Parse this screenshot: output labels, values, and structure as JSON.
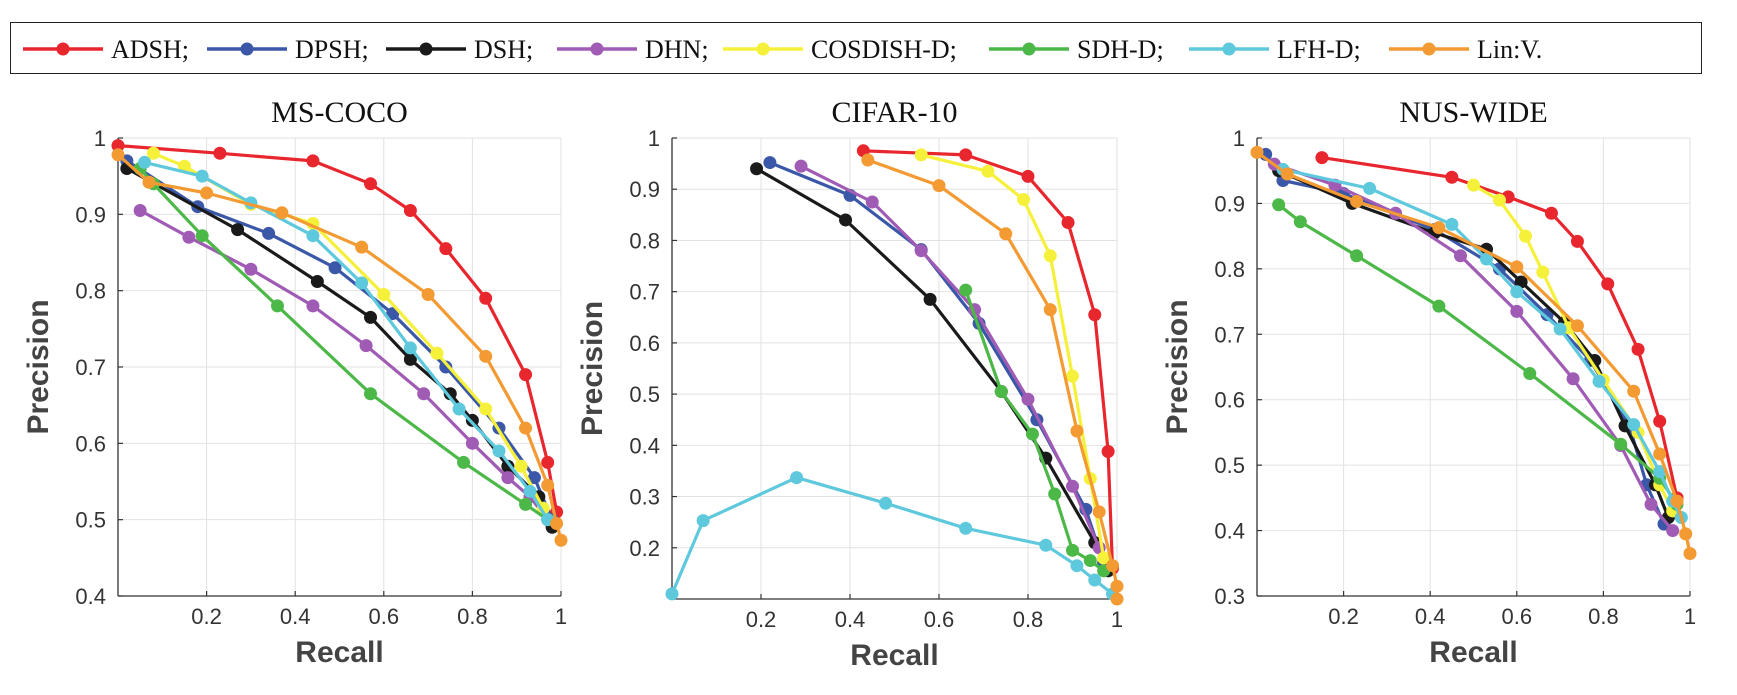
{
  "legend": {
    "items": [
      {
        "label": "ADSH;",
        "color": "#e8262d"
      },
      {
        "label": "DPSH;",
        "color": "#3a57a8"
      },
      {
        "label": "DSH;",
        "color": "#1a1a1a"
      },
      {
        "label": "DHN;",
        "color": "#a05bb5"
      },
      {
        "label": "COSDISH-D;",
        "color": "#f5f03a"
      },
      {
        "label": "SDH-D;",
        "color": "#4cb848"
      },
      {
        "label": "LFH-D;",
        "color": "#5ec8dc"
      },
      {
        "label": "Lin:V.",
        "color": "#f39a33"
      }
    ]
  },
  "chart_data": [
    {
      "type": "line",
      "title": "MS-COCO",
      "xlabel": "Recall",
      "ylabel": "Precision",
      "xlim": [
        0,
        1
      ],
      "ylim": [
        0.4,
        1
      ],
      "xticks": [
        "0.2",
        "0.4",
        "0.6",
        "0.8",
        "1"
      ],
      "yticks": [
        "0.4",
        "0.5",
        "0.6",
        "0.7",
        "0.8",
        "0.9",
        "1"
      ],
      "grid": true,
      "series": [
        {
          "name": "ADSH",
          "color": "#e8262d",
          "points": [
            [
              0.0,
              0.99
            ],
            [
              0.23,
              0.98
            ],
            [
              0.44,
              0.97
            ],
            [
              0.57,
              0.94
            ],
            [
              0.66,
              0.905
            ],
            [
              0.74,
              0.855
            ],
            [
              0.83,
              0.79
            ],
            [
              0.92,
              0.69
            ],
            [
              0.97,
              0.575
            ],
            [
              0.99,
              0.51
            ]
          ]
        },
        {
          "name": "DPSH",
          "color": "#3a57a8",
          "points": [
            [
              0.02,
              0.97
            ],
            [
              0.18,
              0.91
            ],
            [
              0.34,
              0.875
            ],
            [
              0.49,
              0.83
            ],
            [
              0.62,
              0.77
            ],
            [
              0.74,
              0.7
            ],
            [
              0.86,
              0.62
            ],
            [
              0.94,
              0.555
            ],
            [
              0.98,
              0.5
            ]
          ]
        },
        {
          "name": "DSH",
          "color": "#1a1a1a",
          "points": [
            [
              0.02,
              0.96
            ],
            [
              0.27,
              0.88
            ],
            [
              0.45,
              0.812
            ],
            [
              0.57,
              0.765
            ],
            [
              0.66,
              0.71
            ],
            [
              0.75,
              0.665
            ],
            [
              0.8,
              0.63
            ],
            [
              0.88,
              0.57
            ],
            [
              0.95,
              0.53
            ],
            [
              0.98,
              0.49
            ]
          ]
        },
        {
          "name": "DHN",
          "color": "#a05bb5",
          "points": [
            [
              0.05,
              0.905
            ],
            [
              0.16,
              0.87
            ],
            [
              0.3,
              0.828
            ],
            [
              0.44,
              0.78
            ],
            [
              0.56,
              0.728
            ],
            [
              0.69,
              0.665
            ],
            [
              0.8,
              0.6
            ],
            [
              0.88,
              0.555
            ],
            [
              0.93,
              0.53
            ],
            [
              0.97,
              0.5
            ]
          ]
        },
        {
          "name": "COSDISH-D",
          "color": "#f5f03a",
          "points": [
            [
              0.08,
              0.98
            ],
            [
              0.15,
              0.963
            ],
            [
              0.3,
              0.913
            ],
            [
              0.44,
              0.888
            ],
            [
              0.6,
              0.795
            ],
            [
              0.72,
              0.718
            ],
            [
              0.83,
              0.645
            ],
            [
              0.91,
              0.57
            ],
            [
              0.96,
              0.515
            ]
          ]
        },
        {
          "name": "SDH-D",
          "color": "#4cb848",
          "points": [
            [
              0.05,
              0.96
            ],
            [
              0.08,
              0.94
            ],
            [
              0.19,
              0.872
            ],
            [
              0.36,
              0.78
            ],
            [
              0.57,
              0.665
            ],
            [
              0.78,
              0.575
            ],
            [
              0.92,
              0.52
            ],
            [
              0.97,
              0.5
            ]
          ]
        },
        {
          "name": "LFH-D",
          "color": "#5ec8dc",
          "points": [
            [
              0.06,
              0.968
            ],
            [
              0.19,
              0.95
            ],
            [
              0.3,
              0.915
            ],
            [
              0.44,
              0.872
            ],
            [
              0.55,
              0.81
            ],
            [
              0.66,
              0.725
            ],
            [
              0.77,
              0.645
            ],
            [
              0.86,
              0.59
            ],
            [
              0.93,
              0.537
            ],
            [
              0.97,
              0.5
            ]
          ]
        },
        {
          "name": "Lin:V.",
          "color": "#f39a33",
          "points": [
            [
              0.0,
              0.978
            ],
            [
              0.07,
              0.942
            ],
            [
              0.2,
              0.928
            ],
            [
              0.37,
              0.902
            ],
            [
              0.55,
              0.857
            ],
            [
              0.7,
              0.795
            ],
            [
              0.83,
              0.714
            ],
            [
              0.92,
              0.62
            ],
            [
              0.97,
              0.545
            ],
            [
              0.99,
              0.495
            ],
            [
              1.0,
              0.473
            ]
          ]
        }
      ]
    },
    {
      "type": "line",
      "title": "CIFAR-10",
      "xlabel": "Recall",
      "ylabel": "Precision",
      "xlim": [
        0,
        1
      ],
      "ylim": [
        0.1,
        1
      ],
      "xticks": [
        "0.2",
        "0.4",
        "0.6",
        "0.8",
        "1"
      ],
      "yticks": [
        "0.2",
        "0.3",
        "0.4",
        "0.5",
        "0.6",
        "0.7",
        "0.8",
        "0.9",
        "1"
      ],
      "grid": true,
      "series": [
        {
          "name": "ADSH",
          "color": "#e8262d",
          "points": [
            [
              0.43,
              0.975
            ],
            [
              0.66,
              0.967
            ],
            [
              0.8,
              0.925
            ],
            [
              0.89,
              0.835
            ],
            [
              0.95,
              0.655
            ],
            [
              0.98,
              0.388
            ],
            [
              0.99,
              0.16
            ]
          ]
        },
        {
          "name": "DPSH",
          "color": "#3a57a8",
          "points": [
            [
              0.22,
              0.952
            ],
            [
              0.4,
              0.888
            ],
            [
              0.56,
              0.782
            ],
            [
              0.69,
              0.638
            ],
            [
              0.82,
              0.45
            ],
            [
              0.93,
              0.275
            ],
            [
              0.97,
              0.17
            ]
          ]
        },
        {
          "name": "DSH",
          "color": "#1a1a1a",
          "points": [
            [
              0.19,
              0.94
            ],
            [
              0.39,
              0.84
            ],
            [
              0.58,
              0.685
            ],
            [
              0.74,
              0.505
            ],
            [
              0.84,
              0.375
            ],
            [
              0.95,
              0.21
            ],
            [
              0.98,
              0.155
            ]
          ]
        },
        {
          "name": "DHN",
          "color": "#a05bb5",
          "points": [
            [
              0.29,
              0.945
            ],
            [
              0.45,
              0.875
            ],
            [
              0.56,
              0.78
            ],
            [
              0.68,
              0.665
            ],
            [
              0.8,
              0.49
            ],
            [
              0.9,
              0.32
            ],
            [
              0.96,
              0.2
            ]
          ]
        },
        {
          "name": "COSDISH-D",
          "color": "#f5f03a",
          "points": [
            [
              0.56,
              0.967
            ],
            [
              0.71,
              0.935
            ],
            [
              0.79,
              0.88
            ],
            [
              0.85,
              0.77
            ],
            [
              0.9,
              0.535
            ],
            [
              0.94,
              0.335
            ],
            [
              0.97,
              0.18
            ]
          ]
        },
        {
          "name": "SDH-D",
          "color": "#4cb848",
          "points": [
            [
              0.66,
              0.703
            ],
            [
              0.74,
              0.505
            ],
            [
              0.81,
              0.422
            ],
            [
              0.86,
              0.305
            ],
            [
              0.9,
              0.195
            ],
            [
              0.94,
              0.175
            ],
            [
              0.97,
              0.155
            ]
          ]
        },
        {
          "name": "LFH-D",
          "color": "#5ec8dc",
          "points": [
            [
              0.0,
              0.11
            ],
            [
              0.07,
              0.253
            ],
            [
              0.28,
              0.337
            ],
            [
              0.48,
              0.287
            ],
            [
              0.66,
              0.238
            ],
            [
              0.84,
              0.205
            ],
            [
              0.91,
              0.165
            ],
            [
              0.95,
              0.137
            ],
            [
              0.99,
              0.11
            ]
          ]
        },
        {
          "name": "Lin:V.",
          "color": "#f39a33",
          "points": [
            [
              0.44,
              0.957
            ],
            [
              0.6,
              0.907
            ],
            [
              0.75,
              0.813
            ],
            [
              0.85,
              0.665
            ],
            [
              0.91,
              0.428
            ],
            [
              0.96,
              0.27
            ],
            [
              0.99,
              0.165
            ],
            [
              1.0,
              0.125
            ],
            [
              1.0,
              0.1
            ]
          ]
        }
      ]
    },
    {
      "type": "line",
      "title": "NUS-WIDE",
      "xlabel": "Recall",
      "ylabel": "Precision",
      "xlim": [
        0,
        1
      ],
      "ylim": [
        0.3,
        1
      ],
      "xticks": [
        "0.2",
        "0.4",
        "0.6",
        "0.8",
        "1"
      ],
      "yticks": [
        "0.3",
        "0.4",
        "0.5",
        "0.6",
        "0.7",
        "0.8",
        "0.9",
        "1"
      ],
      "grid": true,
      "series": [
        {
          "name": "ADSH",
          "color": "#e8262d",
          "points": [
            [
              0.15,
              0.97
            ],
            [
              0.45,
              0.94
            ],
            [
              0.58,
              0.91
            ],
            [
              0.68,
              0.885
            ],
            [
              0.74,
              0.842
            ],
            [
              0.81,
              0.777
            ],
            [
              0.88,
              0.677
            ],
            [
              0.93,
              0.567
            ],
            [
              0.97,
              0.45
            ]
          ]
        },
        {
          "name": "DPSH",
          "color": "#3a57a8",
          "points": [
            [
              0.02,
              0.975
            ],
            [
              0.06,
              0.935
            ],
            [
              0.2,
              0.915
            ],
            [
              0.41,
              0.86
            ],
            [
              0.56,
              0.8
            ],
            [
              0.67,
              0.73
            ],
            [
              0.77,
              0.66
            ],
            [
              0.86,
              0.56
            ],
            [
              0.9,
              0.47
            ],
            [
              0.94,
              0.41
            ]
          ]
        },
        {
          "name": "DSH",
          "color": "#1a1a1a",
          "points": [
            [
              0.05,
              0.95
            ],
            [
              0.22,
              0.9
            ],
            [
              0.41,
              0.855
            ],
            [
              0.53,
              0.83
            ],
            [
              0.61,
              0.78
            ],
            [
              0.71,
              0.718
            ],
            [
              0.78,
              0.66
            ],
            [
              0.85,
              0.56
            ],
            [
              0.92,
              0.47
            ],
            [
              0.95,
              0.42
            ]
          ]
        },
        {
          "name": "DHN",
          "color": "#a05bb5",
          "points": [
            [
              0.04,
              0.96
            ],
            [
              0.18,
              0.928
            ],
            [
              0.32,
              0.885
            ],
            [
              0.47,
              0.82
            ],
            [
              0.6,
              0.735
            ],
            [
              0.73,
              0.632
            ],
            [
              0.84,
              0.53
            ],
            [
              0.91,
              0.44
            ],
            [
              0.96,
              0.4
            ]
          ]
        },
        {
          "name": "COSDISH-D",
          "color": "#f5f03a",
          "points": [
            [
              0.5,
              0.928
            ],
            [
              0.56,
              0.905
            ],
            [
              0.62,
              0.85
            ],
            [
              0.66,
              0.795
            ],
            [
              0.72,
              0.71
            ],
            [
              0.8,
              0.63
            ],
            [
              0.88,
              0.55
            ],
            [
              0.93,
              0.47
            ],
            [
              0.96,
              0.43
            ]
          ]
        },
        {
          "name": "SDH-D",
          "color": "#4cb848",
          "points": [
            [
              0.05,
              0.898
            ],
            [
              0.1,
              0.872
            ],
            [
              0.23,
              0.82
            ],
            [
              0.42,
              0.743
            ],
            [
              0.63,
              0.64
            ],
            [
              0.84,
              0.532
            ],
            [
              0.93,
              0.48
            ],
            [
              0.97,
              0.44
            ]
          ]
        },
        {
          "name": "LFH-D",
          "color": "#5ec8dc",
          "points": [
            [
              0.06,
              0.952
            ],
            [
              0.26,
              0.923
            ],
            [
              0.45,
              0.868
            ],
            [
              0.53,
              0.815
            ],
            [
              0.6,
              0.765
            ],
            [
              0.7,
              0.708
            ],
            [
              0.79,
              0.628
            ],
            [
              0.87,
              0.562
            ],
            [
              0.93,
              0.49
            ],
            [
              0.96,
              0.445
            ],
            [
              0.98,
              0.42
            ]
          ]
        },
        {
          "name": "Lin:V.",
          "color": "#f39a33",
          "points": [
            [
              0.0,
              0.978
            ],
            [
              0.07,
              0.945
            ],
            [
              0.23,
              0.903
            ],
            [
              0.42,
              0.863
            ],
            [
              0.6,
              0.803
            ],
            [
              0.74,
              0.713
            ],
            [
              0.87,
              0.613
            ],
            [
              0.93,
              0.517
            ],
            [
              0.97,
              0.445
            ],
            [
              0.99,
              0.395
            ],
            [
              1.0,
              0.365
            ]
          ]
        }
      ]
    }
  ]
}
